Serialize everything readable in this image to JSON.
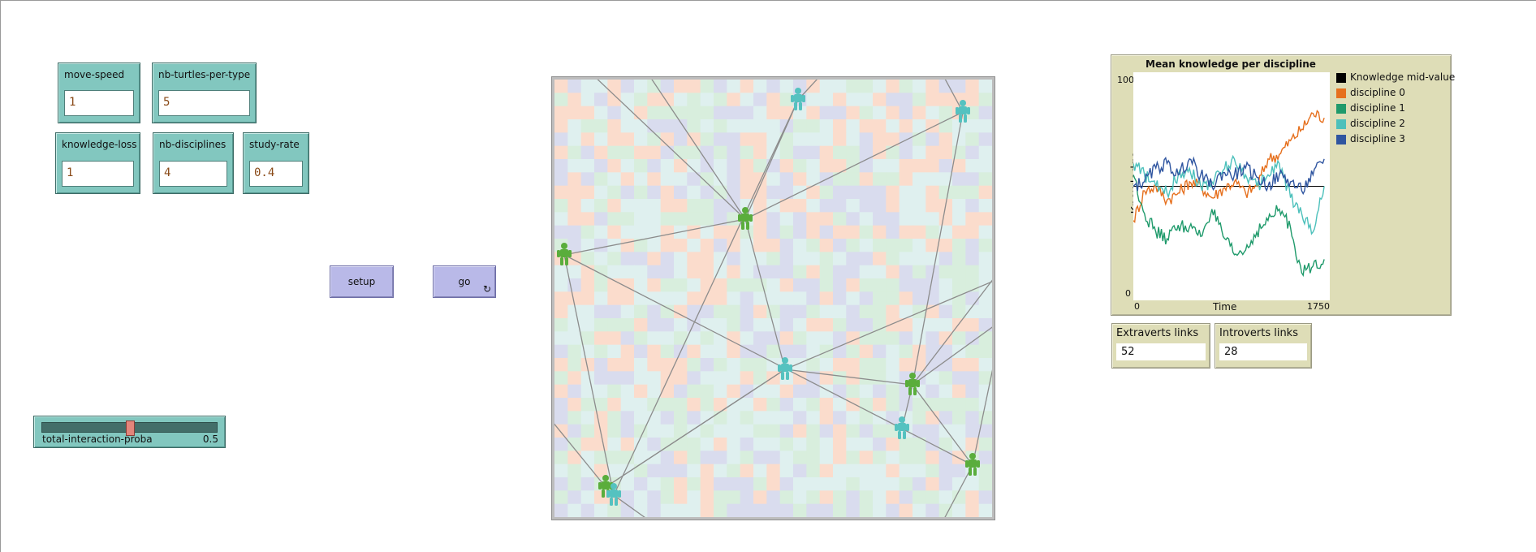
{
  "inputs": {
    "move_speed": {
      "label": "move-speed",
      "value": "1"
    },
    "nb_turtles_per_type": {
      "label": "nb-turtles-per-type",
      "value": "5"
    },
    "knowledge_loss": {
      "label": "knowledge-loss",
      "value": "1"
    },
    "nb_disciplines": {
      "label": "nb-disciplines",
      "value": "4"
    },
    "study_rate": {
      "label": "study-rate",
      "value": "0.4"
    }
  },
  "buttons": {
    "setup": "setup",
    "go": "go",
    "go_forever_icon": "forever-icon"
  },
  "slider": {
    "label": "total-interaction-proba",
    "value": "0.5",
    "level_fraction": 0.5
  },
  "world": {
    "patch_colors": [
      "#dff0ef",
      "#fbdccc",
      "#d9dcee",
      "#d8eedd"
    ],
    "agent_colors": {
      "extravert": "#5aad3c",
      "introvert": "#55c2c0"
    },
    "link_color": "#8c8c8c"
  },
  "plot": {
    "title": "Mean knowledge per discipline",
    "xlabel": "Time",
    "ylabel": "Knowledge",
    "y_ticks": [
      "100",
      "0"
    ],
    "x_ticks": [
      "0",
      "1750"
    ],
    "legend": [
      {
        "label": "Knowledge mid-value",
        "color": "#000000"
      },
      {
        "label": "discipline 0",
        "color": "#e6701e"
      },
      {
        "label": "discipline 1",
        "color": "#1f9a6b"
      },
      {
        "label": "discipline 2",
        "color": "#4cc0bb"
      },
      {
        "label": "discipline 3",
        "color": "#2f55a0"
      }
    ]
  },
  "chart_data": {
    "type": "line",
    "title": "Mean knowledge per discipline",
    "xlabel": "Time",
    "ylabel": "Knowledge",
    "xlim": [
      0,
      1750
    ],
    "ylim": [
      0,
      100
    ],
    "legend_position": "right",
    "x": [
      0,
      100,
      200,
      300,
      400,
      500,
      600,
      700,
      800,
      900,
      1000,
      1100,
      1200,
      1300,
      1400,
      1500,
      1600,
      1700
    ],
    "series": [
      {
        "name": "Knowledge mid-value",
        "color": "#000000",
        "values": [
          50,
          50,
          50,
          50,
          50,
          50,
          50,
          50,
          50,
          50,
          50,
          50,
          50,
          50,
          50,
          50,
          50,
          50
        ]
      },
      {
        "name": "discipline 0",
        "color": "#e6701e",
        "values": [
          35,
          48,
          50,
          44,
          47,
          52,
          50,
          45,
          49,
          52,
          47,
          50,
          62,
          64,
          70,
          75,
          82,
          80
        ]
      },
      {
        "name": "discipline 1",
        "color": "#1f9a6b",
        "values": [
          55,
          38,
          30,
          27,
          33,
          32,
          28,
          40,
          28,
          20,
          22,
          30,
          35,
          40,
          32,
          12,
          15,
          18
        ]
      },
      {
        "name": "discipline 2",
        "color": "#4cc0bb",
        "values": [
          60,
          55,
          50,
          47,
          55,
          58,
          50,
          52,
          57,
          62,
          55,
          50,
          55,
          60,
          45,
          38,
          30,
          50
        ]
      },
      {
        "name": "discipline 3",
        "color": "#2f55a0",
        "values": [
          50,
          52,
          58,
          60,
          55,
          62,
          55,
          50,
          56,
          55,
          58,
          54,
          50,
          55,
          52,
          48,
          55,
          62
        ]
      }
    ]
  },
  "monitors": {
    "extraverts": {
      "label": "Extraverts links",
      "value": "52"
    },
    "introverts": {
      "label": "Introverts links",
      "value": "28"
    }
  }
}
